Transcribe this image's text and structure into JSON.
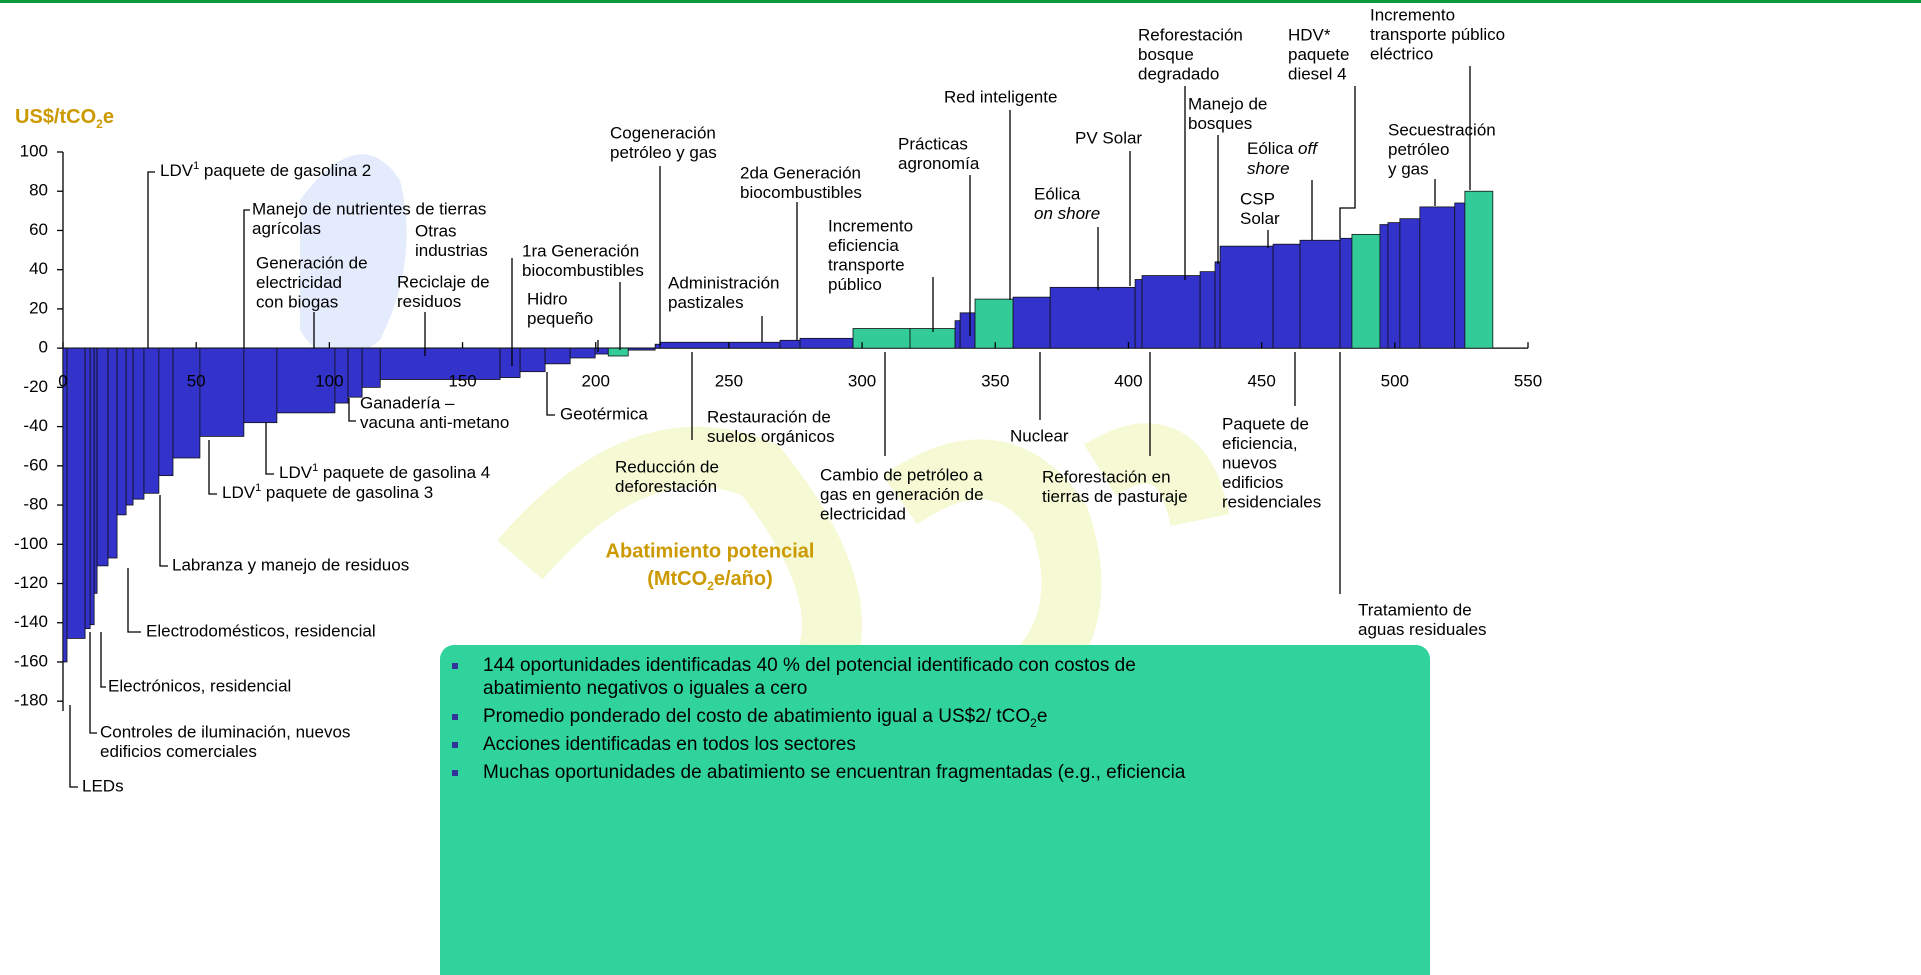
{
  "chart_data": {
    "type": "macc",
    "y_title": [
      "US$/tCO",
      "2",
      "e"
    ],
    "x_title": [
      "Abatimiento potencial",
      [
        "(MtCO",
        "2",
        "e/año)"
      ]
    ],
    "xlim": [
      0,
      550
    ],
    "xticks": [
      0,
      50,
      100,
      150,
      200,
      250,
      300,
      350,
      400,
      450,
      500,
      550
    ],
    "ylim": [
      -185,
      100
    ],
    "yticks": [
      -180,
      -160,
      -140,
      -120,
      -100,
      -80,
      -60,
      -40,
      -20,
      0,
      20,
      40,
      60,
      80,
      100
    ],
    "widths": [
      1.5,
      6.8,
      1.9,
      1.5,
      1.1,
      4.1,
      3.4,
      3.4,
      2.6,
      4.1,
      5.6,
      5.3,
      10.1,
      16.5,
      12.4,
      21.8,
      4.9,
      5.3,
      6.8,
      45,
      7.5,
      9.4,
      9.4,
      9.4,
      4.9,
      7.5,
      10.1,
      1.9,
      45,
      7.5,
      19.9,
      21.4,
      16.9,
      1.9,
      5.6,
      14.3,
      13.9,
      31.9,
      2.6,
      21.8,
      5.6,
      1.9,
      19.9,
      10.1,
      15.0,
      4.5,
      10.5,
      3.0,
      4.5,
      7.5,
      13.1,
      3.8,
      10.5
    ],
    "values": [
      -160,
      -148,
      -143,
      -141,
      -125,
      -111,
      -107,
      -85,
      -80,
      -77,
      -74,
      -65,
      -56,
      -45,
      -38,
      -33,
      -28,
      -25,
      -20,
      -16,
      -15,
      -12,
      -8,
      -5,
      -3,
      -4,
      -1,
      2,
      3,
      4,
      5,
      10,
      10,
      14,
      18,
      25,
      26,
      31,
      35,
      37,
      39,
      44,
      52,
      53,
      55,
      56,
      58,
      63,
      64,
      66,
      72,
      74,
      80
    ],
    "colors": [
      "#3333cc",
      "#3333cc",
      "#3333cc",
      "#3333cc",
      "#3333cc",
      "#3333cc",
      "#3333cc",
      "#3333cc",
      "#3333cc",
      "#3333cc",
      "#3333cc",
      "#3333cc",
      "#3333cc",
      "#3333cc",
      "#3333cc",
      "#3333cc",
      "#3333cc",
      "#3333cc",
      "#3333cc",
      "#3333cc",
      "#3333cc",
      "#3333cc",
      "#3333cc",
      "#3333cc",
      "#3333cc",
      "#33cc99",
      "#3333cc",
      "#3333cc",
      "#3333cc",
      "#3333cc",
      "#3333cc",
      "#33cc99",
      "#33cc99",
      "#3333cc",
      "#3333cc",
      "#33cc99",
      "#3333cc",
      "#3333cc",
      "#3333cc",
      "#3333cc",
      "#3333cc",
      "#3333cc",
      "#3333cc",
      "#3333cc",
      "#3333cc",
      "#3333cc",
      "#33cc99",
      "#3333cc",
      "#3333cc",
      "#3333cc",
      "#3333cc",
      "#3333cc",
      "#33cc99"
    ],
    "annotations": [
      [
        "LEDs"
      ],
      [
        "Controles de iluminación, nuevos",
        "edificios comerciales"
      ],
      [
        "Electrónicos, residencial"
      ],
      [
        "Electrodomésticos, residencial"
      ],
      [
        "Labranza y manejo de residuos"
      ],
      [
        [
          "LDV",
          "1",
          " paquete de gasolina 3"
        ]
      ],
      [
        [
          "LDV",
          "1",
          " paquete de gasolina 4"
        ]
      ],
      [
        "Ganadería –",
        "vacuna anti-metano"
      ],
      [
        "Geotérmica"
      ],
      [
        "Reducción de",
        "deforestación"
      ],
      [
        "Restauración de",
        "suelos orgánicos"
      ],
      [
        "Cambio de petróleo a",
        "gas en generación de",
        "electricidad"
      ],
      [
        "Nuclear"
      ],
      [
        "Reforestación en",
        "tierras de pasturaje"
      ],
      [
        "Paquete de",
        "eficiencia,",
        "nuevos",
        "edificios",
        "residenciales"
      ],
      [
        "Tratamiento de",
        "aguas residuales"
      ],
      [
        [
          "LDV",
          "1",
          " paquete de gasolina 2"
        ]
      ],
      [
        "Manejo de nutrientes de tierras",
        "agrícolas"
      ],
      [
        "Generación de",
        "electricidad",
        "con biogas"
      ],
      [
        "Otras",
        "industrias"
      ],
      [
        "Reciclaje de",
        "residuos"
      ],
      [
        "1ra Generación",
        "biocombustibles"
      ],
      [
        "Hidro",
        "pequeño"
      ],
      [
        "Cogeneración",
        "petróleo y gas"
      ],
      [
        "Administración",
        "pastizales"
      ],
      [
        "2da Generación",
        "biocombustibles"
      ],
      [
        "Incremento",
        "eficiencia",
        "transporte",
        "público"
      ],
      [
        "Prácticas",
        "agronomía"
      ],
      [
        "Red inteligente"
      ],
      [
        "Eólica",
        "on shore"
      ],
      [
        "PV Solar"
      ],
      [
        "Reforestación",
        "bosque",
        "degradado"
      ],
      [
        "Manejo de",
        "bosques"
      ],
      [
        "CSP",
        "Solar"
      ],
      [
        [
          "Eólica ",
          "off"
        ],
        "shore"
      ],
      [
        "HDV*",
        "paquete",
        "diesel 4"
      ],
      [
        "Incremento",
        "transporte público",
        "eléctrico"
      ],
      [
        "Secuestración",
        "petróleo",
        "y gas"
      ]
    ],
    "bullets": [
      [
        "144 oportunidades identificadas 40 % del potencial identificado con costos de",
        "abatimiento negativos o iguales a cero"
      ],
      [
        [
          "Promedio ponderado del costo de abatimiento igual a US$2/ tCO",
          "2",
          "e"
        ]
      ],
      [
        "Acciones identificadas en todos los sectores"
      ],
      [
        "Muchas oportunidades de abatimiento se encuentran fragmentadas (e.g., eficiencia"
      ]
    ]
  }
}
